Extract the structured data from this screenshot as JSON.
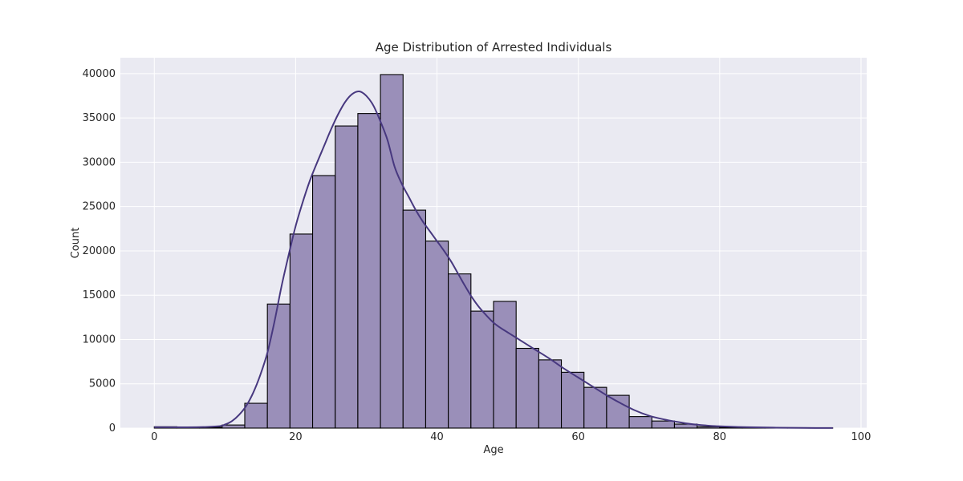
{
  "chart_data": {
    "type": "bar",
    "title": "Age Distribution of Arrested Individuals",
    "xlabel": "Age",
    "ylabel": "Count",
    "xlim": [
      -4.8,
      100.8
    ],
    "ylim": [
      0,
      41800
    ],
    "xticks": [
      0,
      20,
      40,
      60,
      80,
      100
    ],
    "yticks": [
      0,
      5000,
      10000,
      15000,
      20000,
      25000,
      30000,
      35000,
      40000
    ],
    "grid": true,
    "bins": {
      "edges": [
        0,
        3.2,
        6.4,
        9.6,
        12.8,
        16,
        19.2,
        22.4,
        25.6,
        28.8,
        32,
        35.2,
        38.4,
        41.6,
        44.8,
        48,
        51.2,
        54.4,
        57.6,
        60.8,
        64,
        67.2,
        70.4,
        73.6,
        76.8,
        80,
        83.2,
        86.4,
        89.6,
        92.8,
        96
      ],
      "counts": [
        150,
        100,
        100,
        350,
        2800,
        14000,
        21900,
        28500,
        34100,
        35500,
        39900,
        24600,
        21100,
        17400,
        13200,
        14300,
        9000,
        7700,
        6300,
        4600,
        3700,
        1300,
        800,
        450,
        150,
        80,
        40,
        20,
        15,
        10
      ]
    },
    "kde": {
      "x": [
        0,
        6,
        9,
        10,
        11,
        12,
        13,
        14,
        15,
        16,
        17,
        18,
        19,
        20,
        21,
        22,
        23,
        24,
        25,
        26,
        27,
        28,
        29,
        30,
        31,
        32,
        33,
        34,
        35,
        36,
        37,
        38,
        39,
        40,
        41,
        42,
        43,
        44,
        45,
        46,
        47,
        48,
        49,
        50,
        52,
        54,
        56,
        58,
        60,
        62,
        64,
        66,
        68,
        70,
        72,
        74,
        76,
        78,
        80,
        84,
        88,
        92,
        96
      ],
      "y": [
        100,
        100,
        200,
        400,
        800,
        1500,
        2500,
        4000,
        6000,
        8500,
        12000,
        16000,
        19500,
        22800,
        25500,
        27900,
        29900,
        31800,
        33700,
        35400,
        36800,
        37700,
        38000,
        37500,
        36400,
        34600,
        32500,
        29500,
        27600,
        26100,
        24600,
        23300,
        22200,
        21100,
        20000,
        18800,
        17400,
        16000,
        14700,
        13600,
        12700,
        11900,
        11300,
        10800,
        9800,
        8800,
        7800,
        6700,
        5700,
        4700,
        3700,
        2800,
        2000,
        1400,
        1000,
        700,
        450,
        300,
        200,
        100,
        50,
        20,
        10
      ]
    },
    "colors": {
      "bar_fill": "#9a8fb9",
      "bar_edge": "#000000",
      "kde_line": "#47387f",
      "plot_bg": "#eaeaf2",
      "grid": "#ffffff"
    }
  }
}
